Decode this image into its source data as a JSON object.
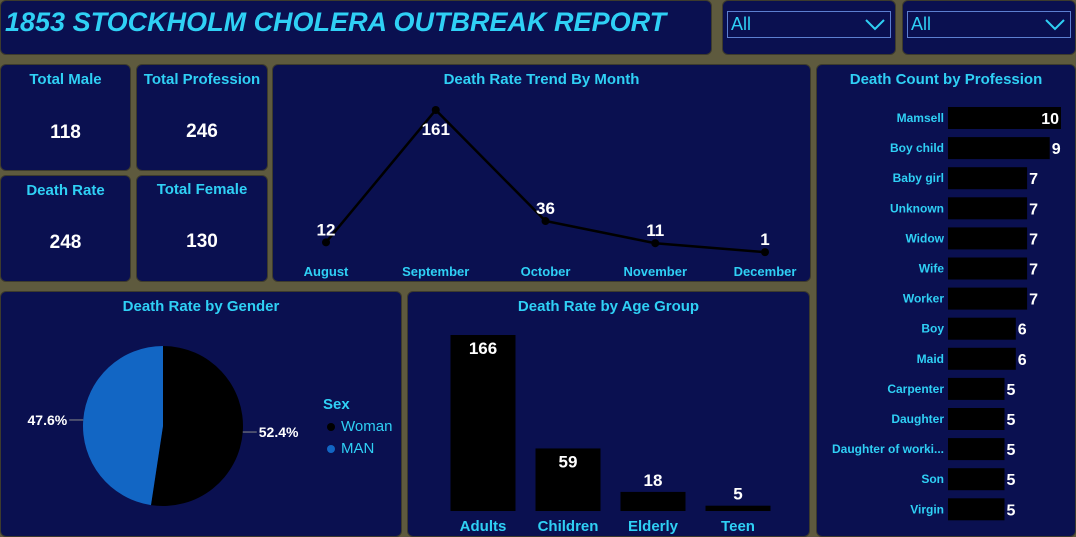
{
  "header": {
    "title": "1853 STOCKHOLM CHOLERA OUTBREAK REPORT"
  },
  "filters": [
    {
      "value": "All",
      "icon": "chevron-down-icon"
    },
    {
      "value": "All",
      "icon": "chevron-down-icon"
    }
  ],
  "kpis": {
    "total_male": {
      "label": "Total Male",
      "value": "118"
    },
    "total_profession": {
      "label": "Total Profession",
      "value": "246"
    },
    "death_rate": {
      "label": "Death Rate",
      "value": "248"
    },
    "total_female": {
      "label": "Total Female",
      "value": "130"
    }
  },
  "colors": {
    "background": "#5e5a3e",
    "panel": "#0a1050",
    "accent_text": "#2fd0f5",
    "woman": "#000000",
    "man": "#1266c4"
  },
  "chart_data": [
    {
      "id": "trend",
      "type": "line",
      "title": "Death Rate Trend By Month",
      "categories": [
        "August",
        "September",
        "October",
        "November",
        "December"
      ],
      "values": [
        12,
        161,
        36,
        11,
        1
      ],
      "xlabel": "",
      "ylabel": "",
      "grid": false
    },
    {
      "id": "gender",
      "type": "pie",
      "title": "Death Rate by Gender",
      "legend_title": "Sex",
      "legend_position": "right",
      "slices": [
        {
          "label": "Woman",
          "percent": 52.4,
          "percent_label": "52.4%",
          "color": "#000000"
        },
        {
          "label": "MAN",
          "percent": 47.6,
          "percent_label": "47.6%",
          "color": "#1266c4"
        }
      ]
    },
    {
      "id": "age",
      "type": "bar",
      "title": "Death Rate by Age Group",
      "categories": [
        "Adults",
        "Children",
        "Elderly",
        "Teen"
      ],
      "values": [
        166,
        59,
        18,
        5
      ],
      "grid": false
    },
    {
      "id": "profession",
      "type": "bar",
      "orientation": "horizontal",
      "title": "Death Count by Profession",
      "categories": [
        "Mamsell",
        "Boy child",
        "Baby girl",
        "Unknown",
        "Widow",
        "Wife",
        "Worker",
        "Boy",
        "Maid",
        "Carpenter",
        "Daughter",
        "Daughter of worki...",
        "Son",
        "Virgin"
      ],
      "values": [
        10,
        9,
        7,
        7,
        7,
        7,
        7,
        6,
        6,
        5,
        5,
        5,
        5,
        5
      ],
      "grid": false
    }
  ]
}
